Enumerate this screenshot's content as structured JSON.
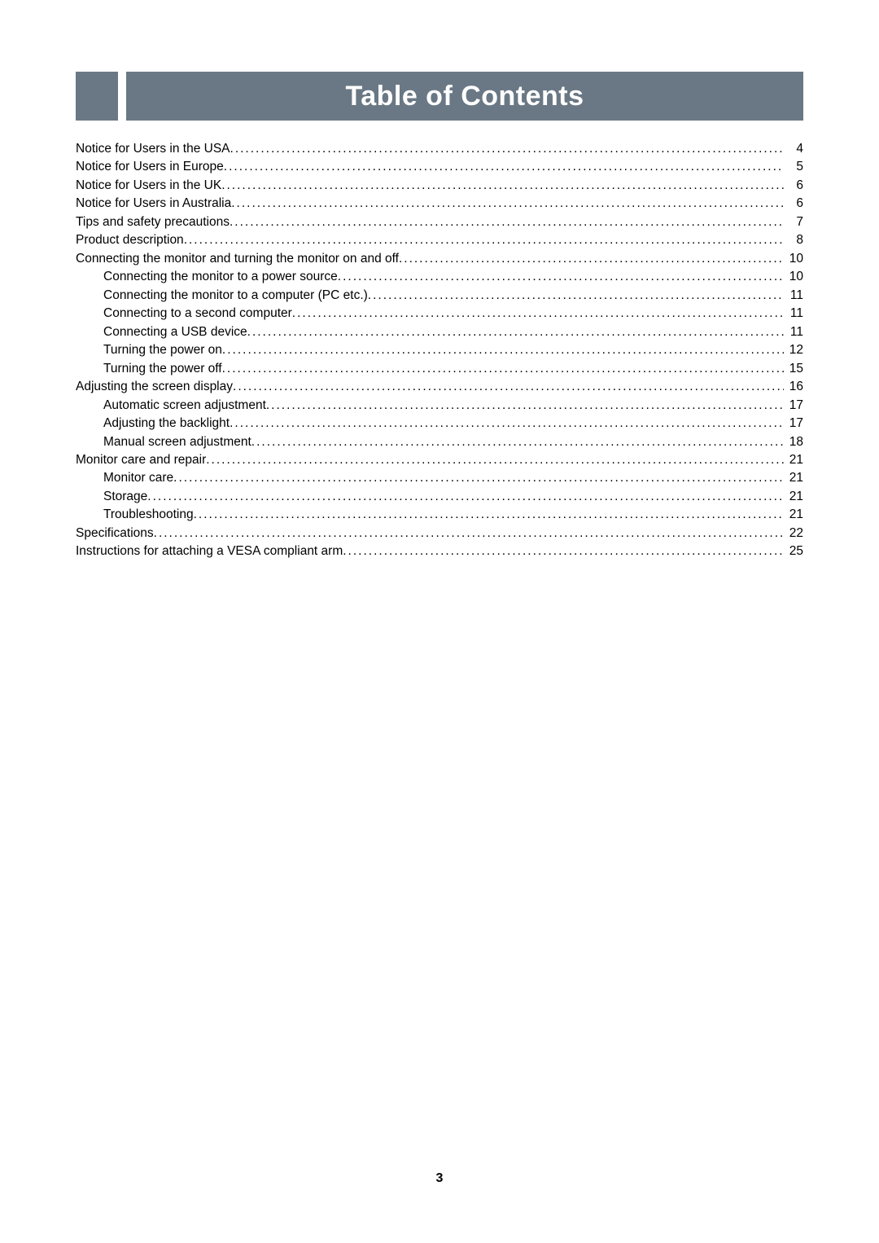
{
  "header": {
    "title": "Table of Contents",
    "bar_color": "#6a7885",
    "title_color": "#ffffff",
    "title_fontsize": 34
  },
  "page_number": "3",
  "toc": {
    "text_color": "#000000",
    "fontsize": 15.5,
    "entries": [
      {
        "label": "Notice for Users in the USA ",
        "page": "4",
        "indent": 0
      },
      {
        "label": "Notice for Users in Europe ",
        "page": "5",
        "indent": 0
      },
      {
        "label": "Notice for Users in the UK ",
        "page": "6",
        "indent": 0
      },
      {
        "label": "Notice for Users in Australia ",
        "page": "6",
        "indent": 0
      },
      {
        "label": "Tips and safety precautions ",
        "page": "7",
        "indent": 0
      },
      {
        "label": "Product description ",
        "page": "8",
        "indent": 0
      },
      {
        "label": "Connecting the monitor and turning the monitor on and off ",
        "page": "10",
        "indent": 0
      },
      {
        "label": "Connecting the monitor to a power source ",
        "page": "10",
        "indent": 1
      },
      {
        "label": "Connecting the monitor to a computer (PC etc.) ",
        "page": "11",
        "indent": 1
      },
      {
        "label": "Connecting to a second computer ",
        "page": "11",
        "indent": 1
      },
      {
        "label": "Connecting a USB device ",
        "page": "11",
        "indent": 1
      },
      {
        "label": "Turning the power on ",
        "page": "12",
        "indent": 1
      },
      {
        "label": "Turning the power off ",
        "page": "15",
        "indent": 1
      },
      {
        "label": "Adjusting the screen display ",
        "page": "16",
        "indent": 0
      },
      {
        "label": "Automatic screen adjustment ",
        "page": "17",
        "indent": 1
      },
      {
        "label": "Adjusting the backlight ",
        "page": "17",
        "indent": 1
      },
      {
        "label": "Manual screen adjustment",
        "page": "18",
        "indent": 1
      },
      {
        "label": "Monitor care and repair ",
        "page": "21",
        "indent": 0
      },
      {
        "label": "Monitor care ",
        "page": "21",
        "indent": 1
      },
      {
        "label": "Storage ",
        "page": "21",
        "indent": 1
      },
      {
        "label": "Troubleshooting ",
        "page": "21",
        "indent": 1
      },
      {
        "label": "Specifications ",
        "page": "22",
        "indent": 0
      },
      {
        "label": "Instructions for attaching a VESA compliant arm ",
        "page": "25",
        "indent": 0
      }
    ]
  }
}
